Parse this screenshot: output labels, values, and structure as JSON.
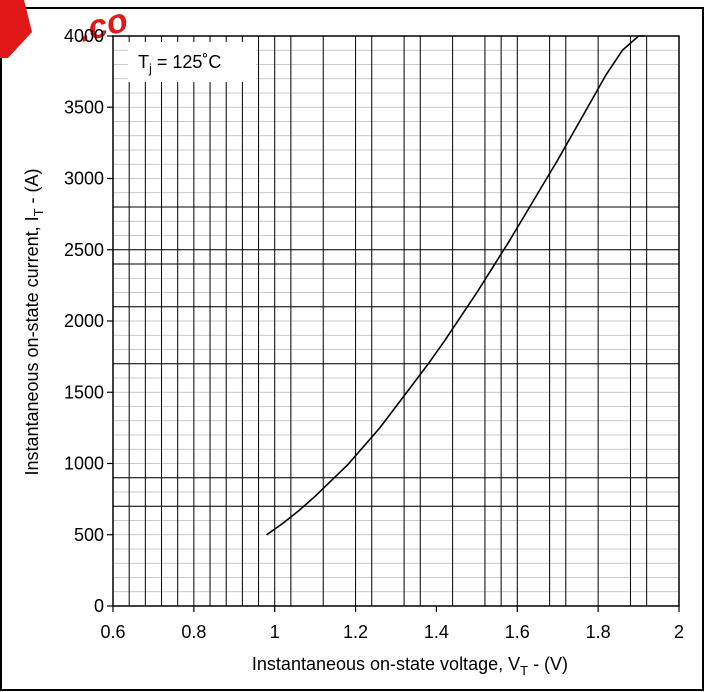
{
  "chart_data": {
    "type": "line",
    "xlabel": "Instantaneous on-state voltage, V",
    "xlabel_sub": "T",
    "xlabel_tail": " - (V)",
    "ylabel": "Instantaneous on-state current, I",
    "ylabel_sub": "T",
    "ylabel_tail": " - (A)",
    "annotation": {
      "prefix": "T",
      "sub": "j",
      "suffix": " = 125˚C"
    },
    "xlim": [
      0.6,
      2.0
    ],
    "ylim": [
      0,
      4000
    ],
    "x_ticks": [
      0.6,
      0.8,
      1.0,
      1.2,
      1.4,
      1.6,
      1.8,
      2.0
    ],
    "x_tick_labels": [
      "0.6",
      "0.8",
      "1",
      "1.2",
      "1.4",
      "1.6",
      "1.8",
      "2"
    ],
    "y_ticks": [
      0,
      500,
      1000,
      1500,
      2000,
      2500,
      3000,
      3500,
      4000
    ],
    "y_tick_labels": [
      "0",
      "500",
      "1000",
      "1500",
      "2000",
      "2500",
      "3000",
      "3500",
      "4000"
    ],
    "x_grid": [
      0.64,
      0.68,
      0.72,
      0.76,
      0.8,
      0.84,
      0.88,
      0.92,
      0.96,
      1.0,
      1.04,
      1.12,
      1.2,
      1.24,
      1.32,
      1.36,
      1.44,
      1.52,
      1.56,
      1.6,
      1.68,
      1.72,
      1.8,
      1.88,
      1.92,
      2.0
    ],
    "y_grid": [
      100,
      200,
      300,
      400,
      500,
      600,
      700,
      800,
      900,
      1000,
      1100,
      1200,
      1300,
      1400,
      1500,
      1600,
      1700,
      1800,
      1900,
      2000,
      2100,
      2200,
      2300,
      2400,
      2500,
      2600,
      2700,
      2800,
      2900,
      3000,
      3100,
      3200,
      3300,
      3400,
      3500,
      3600,
      3700,
      3800,
      3900,
      4000
    ],
    "y_grid_major": [
      700,
      900,
      1700,
      2100,
      2400,
      2500,
      2800
    ],
    "grid": true,
    "series": [
      {
        "color": "#000000",
        "x": [
          0.98,
          1.02,
          1.06,
          1.1,
          1.14,
          1.18,
          1.22,
          1.26,
          1.3,
          1.34,
          1.38,
          1.42,
          1.46,
          1.5,
          1.54,
          1.58,
          1.62,
          1.66,
          1.7,
          1.74,
          1.78,
          1.82,
          1.86,
          1.9,
          1.915
        ],
        "y": [
          500,
          580,
          670,
          770,
          880,
          990,
          1120,
          1250,
          1400,
          1550,
          1700,
          1860,
          2030,
          2200,
          2380,
          2560,
          2750,
          2940,
          3130,
          3330,
          3530,
          3730,
          3900,
          4050,
          4100
        ]
      }
    ]
  }
}
